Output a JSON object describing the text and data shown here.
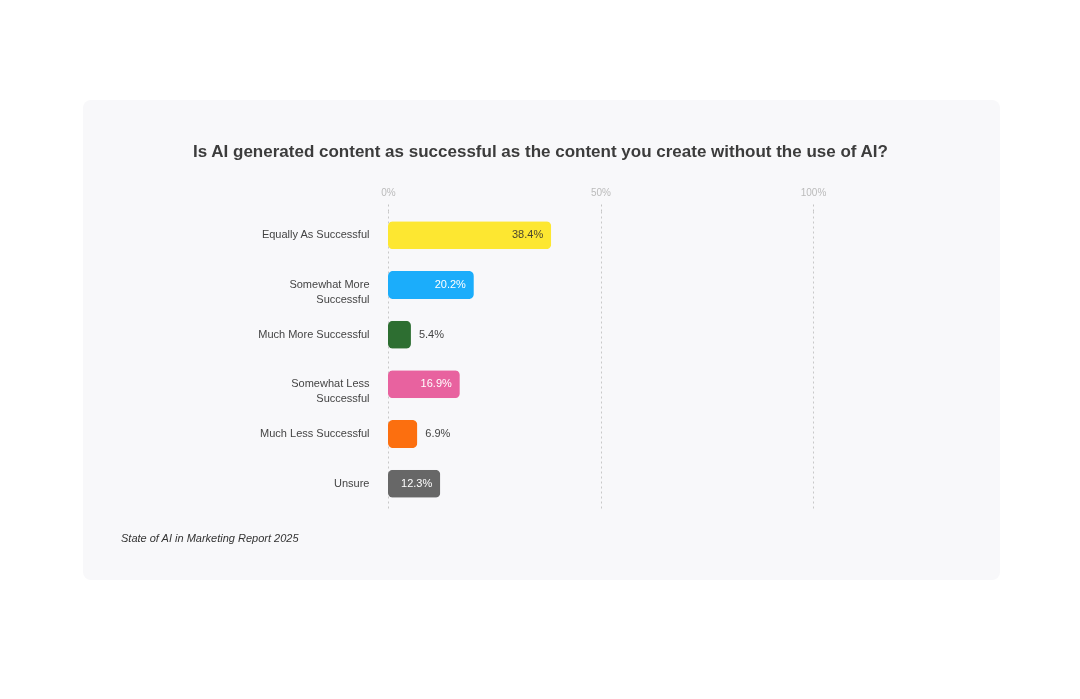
{
  "chart_data": {
    "type": "bar",
    "orientation": "horizontal",
    "title": "Is AI generated content as successful as the content you create without the use of AI?",
    "categories": [
      "Equally As Successful",
      "Somewhat More Successful",
      "Much More Successful",
      "Somewhat Less Successful",
      "Much Less Successful",
      "Unsure"
    ],
    "values": [
      38.4,
      20.2,
      5.4,
      16.9,
      6.9,
      12.3
    ],
    "value_labels": [
      "38.4%",
      "20.2%",
      "5.4%",
      "16.9%",
      "6.9%",
      "12.3%"
    ],
    "colors": [
      "#fde731",
      "#1badfb",
      "#2d6e31",
      "#e8629f",
      "#fc6f0f",
      "#676767"
    ],
    "xlim": [
      0,
      100
    ],
    "xticks": [
      {
        "value": 0,
        "label": "0%"
      },
      {
        "value": 50,
        "label": "50%"
      },
      {
        "value": 100,
        "label": "100%"
      }
    ],
    "grid": "x",
    "annotations": [
      "State of AI in Marketing Report 2025"
    ]
  }
}
